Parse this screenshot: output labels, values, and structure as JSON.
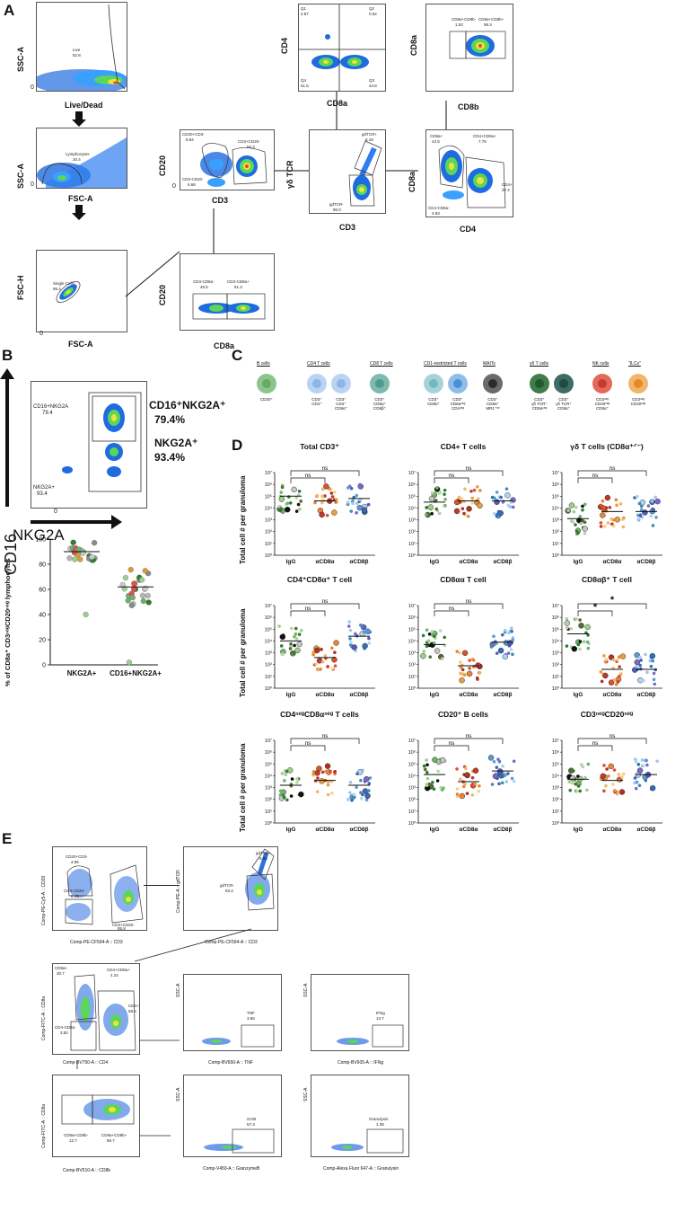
{
  "panels": {
    "a": "A",
    "b": "B",
    "c": "C",
    "d": "D",
    "e": "E"
  },
  "gating_a": {
    "livedead": {
      "ylabel": "SSC-A",
      "xlabel": "Live/Dead",
      "gate": "Live",
      "value": "52.8"
    },
    "lymph": {
      "ylabel": "SSC-A",
      "xlabel": "",
      "gate": "Lymphocytes",
      "value": "20.4"
    },
    "single": {
      "ylabel": "FSC-H",
      "xlabel": "FSC-A",
      "gate": "Single Cells",
      "value": "95.4"
    },
    "fsca_mid": "FSC-A",
    "cd20cd3": {
      "ylabel": "CD20",
      "xlabel": "CD3",
      "g1": "CD20+CD3-",
      "v1": "8.84",
      "g2": "CD3+CD20-",
      "v2": "84.3",
      "g3": "CD3-CD20-",
      "v3": "5.68"
    },
    "cd4cd8": {
      "ylabel": "CD4",
      "xlabel": "CD8a",
      "q1": "Q1",
      "q1v": "2.87",
      "q2": "Q2",
      "q2v": "0.62",
      "q3": "Q3",
      "q3v": "44.8",
      "q4": "Q4",
      "q4v": "51.5"
    },
    "cd8acd8b": {
      "ylabel": "CD8a",
      "xlabel": "CD8b",
      "g1": "CD8a+CD8b-",
      "v1": "1.53",
      "g2": "CD8a+CD8b+",
      "v2": "98.3"
    },
    "gd": {
      "ylabel": "γδ TCR",
      "xlabel": "CD3",
      "g1": "gdTCR+",
      "v1": "8.18",
      "g2": "gdTCR-",
      "v2": "90.0"
    },
    "cd8acd4": {
      "ylabel": "CD8a",
      "xlabel": "CD4",
      "g1": "CD8a+",
      "v1": "43.5",
      "g2": "CD4+CD8a+",
      "v2": "7.76",
      "g3": "CD4+",
      "v3": "37.4",
      "g4": "CD4-CD8a-",
      "v4": "4.83"
    },
    "cd20cd8a": {
      "ylabel": "CD20",
      "xlabel": "CD8a",
      "g1": "CD3-CD8a-",
      "v1": "45.5",
      "g2": "CD3-CD8a+",
      "v2": "51.3"
    }
  },
  "panel_b": {
    "ylabel": "CD16",
    "xlabel": "NKG2A",
    "g1": "CD16+NKG2A",
    "v1": "79.4",
    "g2": "NKG2A+",
    "v2": "93.4",
    "big1_name": "CD16⁺NKG2A⁺",
    "big1_val": "79.4%",
    "big2_name": "NKG2A⁺",
    "big2_val": "93.4%",
    "dot_ylabel": "% of CD8a⁺ CD3ⁿᵉᵍCD20ⁿᵉᵍ lymphocytes",
    "yticks": [
      "100",
      "80",
      "60",
      "40",
      "20",
      "0"
    ],
    "categories": [
      "NKG2A+",
      "CD16+NKG2A+"
    ],
    "medians": [
      90,
      62
    ]
  },
  "panel_c": {
    "groups": [
      {
        "title": "B cells",
        "cells": [
          {
            "color": "#8cc58a",
            "inner": "#67a965",
            "mark": "CD20⁺"
          }
        ]
      },
      {
        "title": "CD4 T cells",
        "cells": [
          {
            "color": "#b9d3f1",
            "inner": "#8db5e6",
            "mark": "CD3⁺\nCD4⁺"
          },
          {
            "color": "#b9d3f1",
            "inner": "#8db5e6",
            "mark": "CD3⁺\nCD4⁺\nCD8α⁺"
          }
        ]
      },
      {
        "title": "CD8 T cells",
        "cells": [
          {
            "color": "#7fbab0",
            "inner": "#4f9a8f",
            "mark": "CD3⁺\nCD8α⁺\nCD8β⁺"
          }
        ]
      },
      {
        "title": "CD1-restricted T cells",
        "cells": [
          {
            "color": "#a7d3d8",
            "inner": "#76b6be",
            "mark": "CD3⁺\nCD8α⁺"
          },
          {
            "color": "#8fbde8",
            "inner": "#4b8fd6",
            "mark": "CD3⁺\nCD8αⁿᵉᵍ\nCD4ⁿᵉᵍ"
          }
        ]
      },
      {
        "title": "MAITs",
        "cells": [
          {
            "color": "#6b6b6b",
            "inner": "#2b2b2b",
            "mark": "CD3⁺\nCD8α⁺\nMR1⁺ᵛᵉ"
          }
        ]
      },
      {
        "title": "γδ T cells",
        "cells": [
          {
            "color": "#3f7d4a",
            "inner": "#21582c",
            "mark": "CD3⁺\nγδ TCR⁺\nCD8αⁿᵉᵍ"
          },
          {
            "color": "#3f6d66",
            "inner": "#214a45",
            "mark": "CD3⁺\nγδ TCR⁺\nCD8α⁺"
          }
        ]
      },
      {
        "title": "NK cells",
        "cells": [
          {
            "color": "#e46a5a",
            "inner": "#c73a2e",
            "mark": "CD3ⁿᵉᵍ\nCD20ⁿᵉᵍ\nCD8α⁺"
          }
        ]
      },
      {
        "title": "\"ILCs\"",
        "cells": [
          {
            "color": "#f2b56a",
            "inner": "#e48a2c",
            "mark": "CD3ⁿᵉᵍ\nCD20ⁿᵉᵍ"
          }
        ]
      }
    ]
  },
  "panel_d": {
    "ylabel": "Total cell # per granuloma",
    "yticks": [
      "10⁷",
      "10⁶",
      "10⁵",
      "10⁴",
      "10³",
      "10²",
      "10¹",
      "10⁰"
    ],
    "groups": [
      "IgG",
      "αCD8α",
      "αCD8β"
    ],
    "charts": [
      {
        "title": "Total CD3⁺",
        "medians": [
          5.0,
          4.6,
          4.8
        ],
        "sig1": "ns",
        "sig2": "ns"
      },
      {
        "title": "CD4+ T cells",
        "medians": [
          4.5,
          4.6,
          4.6
        ],
        "sig1": "ns",
        "sig2": "ns"
      },
      {
        "title": "γδ T cells (CD8α⁺ᐟ⁻)",
        "medians": [
          3.1,
          3.7,
          3.7
        ],
        "sig1": "ns",
        "sig2": "ns"
      },
      {
        "title": "CD4⁺CD8α⁺ T cell",
        "medians": [
          4.0,
          2.6,
          4.4
        ],
        "sig1": "ns",
        "sig2": "ns"
      },
      {
        "title": "CD8αα T cell",
        "medians": [
          3.7,
          1.9,
          3.9
        ],
        "sig1": "ns",
        "sig2": "ns"
      },
      {
        "title": "CD8αβ⁺ T cell",
        "medians": [
          4.6,
          1.6,
          1.6
        ],
        "sig1": "*",
        "sig2": "*"
      },
      {
        "title": "CD4ⁿᵉᵍCD8αⁿᵉᵍ T cells",
        "medians": [
          3.2,
          3.6,
          3.2
        ],
        "sig1": "ns",
        "sig2": "ns"
      },
      {
        "title": "CD20⁺ B cells",
        "medians": [
          4.1,
          3.5,
          4.4
        ],
        "sig1": "ns",
        "sig2": "ns"
      },
      {
        "title": "CD3ⁿᵉᵍCD20ⁿᵉᵍ",
        "medians": [
          3.7,
          3.6,
          4.1
        ],
        "sig1": "ns",
        "sig2": "ns"
      }
    ]
  },
  "panel_e": {
    "p1": {
      "y": "Comp-PE-Cy5-A :: CD20",
      "x": "Comp-PE-CF594-A :: CD3",
      "g1": "CD20+CD3-",
      "v1": "4.86",
      "g2": "CD3-CD20-",
      "v2": "8.45",
      "g3": "CD3+CD20-",
      "v3": "85.8"
    },
    "p2": {
      "y": "Comp-PE-A :: gdTCR",
      "x": "Comp-PE-CF594-A :: CD3",
      "g1": "gdTCR+",
      "v1": "5.95",
      "g2": "gdTCR-",
      "v2": "93.2"
    },
    "p3": {
      "y": "Comp-FITC-A :: CD8a",
      "x": "Comp-BV750-A :: CD4",
      "g1": "CD8a+",
      "v1": "30.7",
      "g2": "CD4+CD8a+",
      "v2": "4.24",
      "g3": "CD4-CD8a-",
      "v3": "3.82",
      "g4": "CD4+",
      "v4": "58.6"
    },
    "p4": {
      "y": "SSC-A",
      "x": "Comp-BV650-A :: TNF",
      "g": "TNF",
      "v": "3.65"
    },
    "p5": {
      "y": "SSC-A",
      "x": "Comp-BV605-A :: IFNg",
      "g": "IFNg",
      "v": "13.7"
    },
    "p6": {
      "y": "Comp-FITC-A :: CD8a",
      "x": "Comp-BV510-A :: CD8b",
      "g1": "CD8a+CD8b-",
      "v1": "12.7",
      "g2": "CD8a+CD8b+",
      "v2": "86.7"
    },
    "p7": {
      "y": "SSC-A",
      "x": "Comp-V450-A :: GranzymeB",
      "g": "GrzB",
      "v": "57.3"
    },
    "p8": {
      "y": "SSC-A",
      "x": "Comp-Alexa Fluor 647-A :: Granulysin",
      "g": "Granulysin",
      "v": "1.39"
    }
  },
  "axis_zero": "0"
}
